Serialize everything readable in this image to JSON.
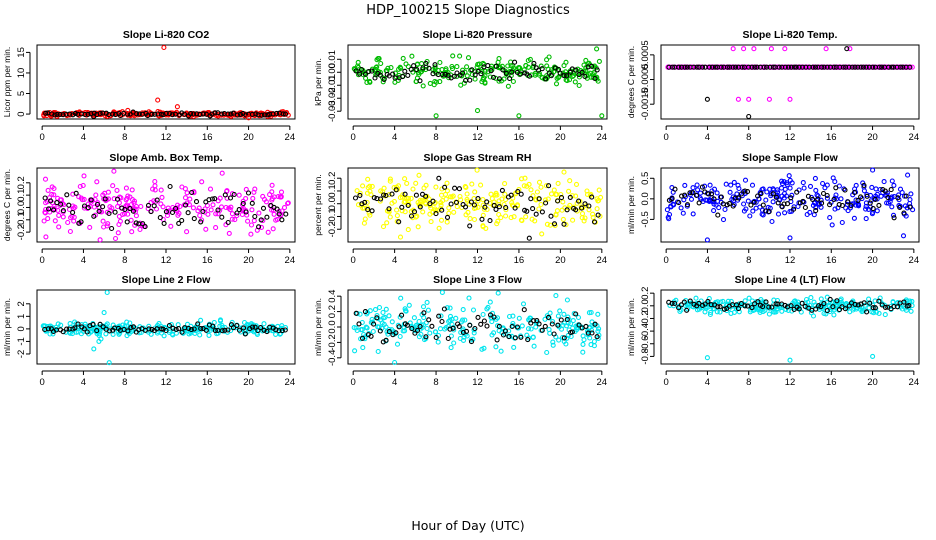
{
  "title": "HDP_100215  Slope Diagnostics",
  "xlabel": "Hour of Day (UTC)",
  "chart_data": [
    {
      "type": "scatter",
      "title": "Slope Li-820 CO2",
      "ylabel": "Licor ppm per min.",
      "color": "#ff0000",
      "xlim": [
        -0.5,
        24.5
      ],
      "xticks": [
        0,
        4,
        8,
        12,
        16,
        20,
        24
      ],
      "ylim": [
        -1.2,
        16.8
      ],
      "yticks": [
        0,
        5,
        10,
        15
      ],
      "ytick_labels": [
        "0",
        "5",
        "10",
        "15"
      ],
      "noise": 0.25,
      "outliers": [
        [
          11.8,
          16.2
        ],
        [
          11.2,
          3.4
        ],
        [
          13.1,
          1.8
        ],
        [
          8.3,
          0.9
        ],
        [
          20.0,
          -0.9
        ]
      ],
      "black_outliers": [
        [
          5.0,
          -0.6
        ]
      ]
    },
    {
      "type": "scatter",
      "title": "Slope Li-820 Pressure",
      "ylabel": "kPa per min.",
      "color": "#00bb00",
      "xlim": [
        -0.5,
        24.5
      ],
      "xticks": [
        0,
        4,
        8,
        12,
        16,
        20,
        24
      ],
      "ylim": [
        -0.036,
        0.021
      ],
      "yticks": [
        -0.03,
        -0.02,
        -0.01,
        0.0,
        0.01
      ],
      "ytick_labels": [
        "-0.03",
        "-0.02",
        "-0.01",
        "0.00",
        "0.01"
      ],
      "noise": 0.005,
      "outliers": [
        [
          8.0,
          -0.0335
        ],
        [
          12.0,
          -0.0295
        ],
        [
          16.0,
          -0.0335
        ],
        [
          24.0,
          -0.0335
        ],
        [
          23.5,
          0.018
        ]
      ],
      "black_outliers": []
    },
    {
      "type": "scatter",
      "title": "Slope Li-820 Temp.",
      "ylabel": "degrees C per min.",
      "color": "#ff00ff",
      "xlim": [
        -0.5,
        24.5
      ],
      "xticks": [
        0,
        4,
        8,
        12,
        16,
        20,
        24
      ],
      "ylim": [
        -0.0021,
        0.0009
      ],
      "yticks": [
        -0.0015,
        -0.0005,
        0.0005
      ],
      "ytick_labels": [
        "-0.0015",
        "-0.0005",
        "0.0005"
      ],
      "noise": 0.0,
      "outliers": [
        [
          6.5,
          0.00075
        ],
        [
          7.5,
          0.00075
        ],
        [
          8.5,
          0.00075
        ],
        [
          10.2,
          0.00075
        ],
        [
          11.5,
          0.00075
        ],
        [
          15.5,
          0.00075
        ],
        [
          17.8,
          0.00075
        ],
        [
          7.0,
          -0.0013
        ],
        [
          8.0,
          -0.0013
        ],
        [
          10.0,
          -0.0013
        ],
        [
          12.0,
          -0.0013
        ]
      ],
      "black_outliers": [
        [
          4.0,
          -0.0013
        ],
        [
          8.0,
          -0.002
        ],
        [
          17.5,
          0.00075
        ]
      ]
    },
    {
      "type": "scatter",
      "title": "Slope Amb. Box Temp.",
      "ylabel": "degrees C per min.",
      "color": "#ff00ff",
      "xlim": [
        -0.5,
        24.5
      ],
      "xticks": [
        0,
        4,
        8,
        12,
        16,
        20,
        24
      ],
      "ylim": [
        -0.28,
        0.32
      ],
      "yticks": [
        -0.2,
        -0.1,
        0.0,
        0.1,
        0.2
      ],
      "ytick_labels": [
        "-0.2",
        "-0.1",
        "0.0",
        "0.1",
        "0.2"
      ],
      "noise": 0.1,
      "outliers": [],
      "black_outliers": []
    },
    {
      "type": "scatter",
      "title": "Slope Gas Stream RH",
      "ylabel": "percent per min.",
      "color": "#ffff00",
      "xlim": [
        -0.5,
        24.5
      ],
      "xticks": [
        0,
        4,
        8,
        12,
        16,
        20,
        24
      ],
      "ylim": [
        -0.3,
        0.28
      ],
      "yticks": [
        -0.2,
        -0.1,
        0.0,
        0.1,
        0.2
      ],
      "ytick_labels": [
        "-0.2",
        "-0.1",
        "0.0",
        "0.1",
        "0.2"
      ],
      "noise": 0.1,
      "outliers": [],
      "black_outliers": [
        [
          17.0,
          -0.27
        ]
      ]
    },
    {
      "type": "scatter",
      "title": "Slope Sample Flow",
      "ylabel": "ml/min per min.",
      "color": "#0000ff",
      "xlim": [
        -0.5,
        24.5
      ],
      "xticks": [
        0,
        4,
        8,
        12,
        16,
        20,
        24
      ],
      "ylim": [
        -1.05,
        0.75
      ],
      "yticks": [
        -0.5,
        0.0,
        0.5
      ],
      "ytick_labels": [
        "-0.5",
        "0.0",
        "0.5"
      ],
      "noise": 0.25,
      "outliers": [
        [
          4.0,
          -1.0
        ],
        [
          12.0,
          -0.95
        ],
        [
          20.0,
          0.7
        ],
        [
          23.0,
          -0.9
        ]
      ],
      "black_outliers": []
    },
    {
      "type": "scatter",
      "title": "Slope Line 2 Flow",
      "ylabel": "ml/min per min.",
      "color": "#00e5ee",
      "xlim": [
        -0.5,
        24.5
      ],
      "xticks": [
        0,
        4,
        8,
        12,
        16,
        20,
        24
      ],
      "ylim": [
        -2.8,
        3.1
      ],
      "yticks": [
        -2,
        -1,
        0,
        1,
        2
      ],
      "ytick_labels": [
        "-2",
        "-1",
        "0",
        "1",
        "2"
      ],
      "noise": 0.25,
      "outliers": [
        [
          6.3,
          2.9
        ],
        [
          6.5,
          -2.7
        ],
        [
          5.5,
          -1.0
        ],
        [
          5.0,
          -1.6
        ],
        [
          6.0,
          1.3
        ],
        [
          5.7,
          -0.8
        ]
      ],
      "black_outliers": []
    },
    {
      "type": "scatter",
      "title": "Slope Line 3 Flow",
      "ylabel": "ml/min per min.",
      "color": "#00e5ee",
      "xlim": [
        -0.5,
        24.5
      ],
      "xticks": [
        0,
        4,
        8,
        12,
        16,
        20,
        24
      ],
      "ylim": [
        -0.48,
        0.48
      ],
      "yticks": [
        -0.4,
        -0.2,
        0.0,
        0.2,
        0.4
      ],
      "ytick_labels": [
        "-0.4",
        "-0.2",
        "0.0",
        "0.2",
        "0.4"
      ],
      "noise": 0.15,
      "outliers": [
        [
          4.0,
          -0.46
        ],
        [
          14.0,
          0.44
        ]
      ],
      "black_outliers": []
    },
    {
      "type": "scatter",
      "title": "Slope Line 4 (LT) Flow",
      "ylabel": "ml/min per min.",
      "color": "#00e5ee",
      "xlim": [
        -0.5,
        24.5
      ],
      "xticks": [
        0,
        4,
        8,
        12,
        16,
        20,
        24
      ],
      "ylim": [
        -0.92,
        0.25
      ],
      "yticks": [
        -0.8,
        -0.6,
        -0.4,
        -0.2,
        0.0,
        0.2
      ],
      "ytick_labels": [
        "-0.8",
        "-0.6",
        "-0.4",
        "-0.2",
        "0.0",
        "0.2"
      ],
      "noise": 0.06,
      "outliers": [
        [
          4.0,
          -0.82
        ],
        [
          12.0,
          -0.86
        ],
        [
          20.0,
          -0.8
        ]
      ],
      "black_outliers": []
    }
  ]
}
